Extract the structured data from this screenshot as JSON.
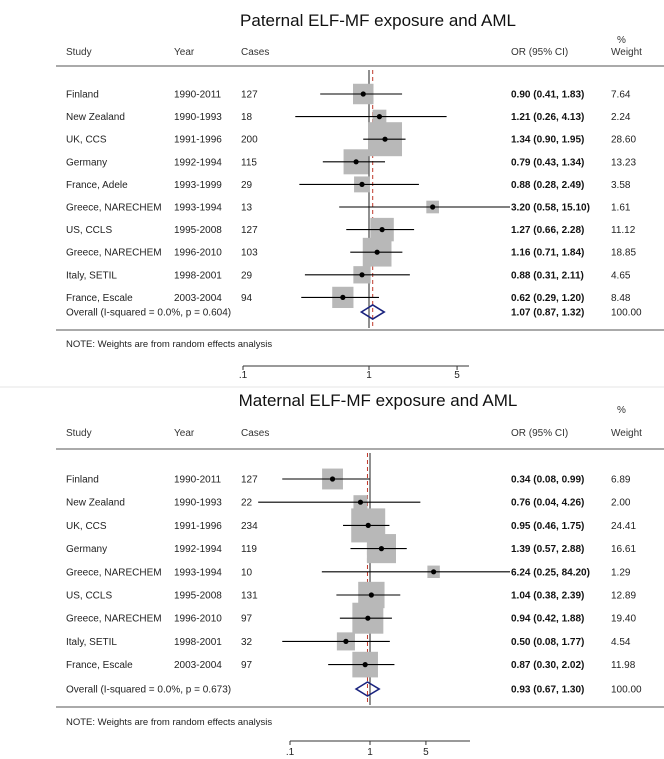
{
  "chart_data": [
    {
      "type": "forest",
      "title": "Paternal ELF-MF exposure and AML",
      "columns": {
        "study": "Study",
        "year": "Year",
        "cases": "Cases",
        "or": "OR (95% CI)",
        "weight_top": "%",
        "weight": "Weight"
      },
      "studies": [
        {
          "study": "Finland",
          "year": "1990-2011",
          "cases": "127",
          "or_text": "0.90 (0.41, 1.83)",
          "weight_text": "7.64",
          "or": 0.9,
          "lo": 0.41,
          "hi": 1.83,
          "weight": 7.64
        },
        {
          "study": "New Zealand",
          "year": "1990-1993",
          "cases": "18",
          "or_text": "1.21 (0.26, 4.13)",
          "weight_text": "2.24",
          "or": 1.21,
          "lo": 0.26,
          "hi": 4.13,
          "weight": 2.24
        },
        {
          "study": "UK, CCS",
          "year": "1991-1996",
          "cases": "200",
          "or_text": "1.34 (0.90, 1.95)",
          "weight_text": "28.60",
          "or": 1.34,
          "lo": 0.9,
          "hi": 1.95,
          "weight": 28.6
        },
        {
          "study": "Germany",
          "year": "1992-1994",
          "cases": "115",
          "or_text": "0.79 (0.43, 1.34)",
          "weight_text": "13.23",
          "or": 0.79,
          "lo": 0.43,
          "hi": 1.34,
          "weight": 13.23
        },
        {
          "study": "France, Adele",
          "year": "1993-1999",
          "cases": "29",
          "or_text": "0.88 (0.28, 2.49)",
          "weight_text": "3.58",
          "or": 0.88,
          "lo": 0.28,
          "hi": 2.49,
          "weight": 3.58
        },
        {
          "study": "Greece, NARECHEM",
          "year": "1993-1994",
          "cases": "13",
          "or_text": "3.20 (0.58, 15.10)",
          "weight_text": "1.61",
          "or": 3.2,
          "lo": 0.58,
          "hi": 15.1,
          "weight": 1.61
        },
        {
          "study": "US, CCLS",
          "year": "1995-2008",
          "cases": "127",
          "or_text": "1.27 (0.66, 2.28)",
          "weight_text": "11.12",
          "or": 1.27,
          "lo": 0.66,
          "hi": 2.28,
          "weight": 11.12
        },
        {
          "study": "Greece, NARECHEM",
          "year": "1996-2010",
          "cases": "103",
          "or_text": "1.16 (0.71, 1.84)",
          "weight_text": "18.85",
          "or": 1.16,
          "lo": 0.71,
          "hi": 1.84,
          "weight": 18.85
        },
        {
          "study": "Italy, SETIL",
          "year": "1998-2001",
          "cases": "29",
          "or_text": "0.88 (0.31, 2.11)",
          "weight_text": "4.65",
          "or": 0.88,
          "lo": 0.31,
          "hi": 2.11,
          "weight": 4.65
        },
        {
          "study": "France, Escale",
          "year": "2003-2004",
          "cases": "94",
          "or_text": "0.62 (0.29, 1.20)",
          "weight_text": "8.48",
          "or": 0.62,
          "lo": 0.29,
          "hi": 1.2,
          "weight": 8.48
        }
      ],
      "overall": {
        "label": "Overall  (I-squared = 0.0%, p = 0.604)",
        "or_text": "1.07 (0.87, 1.32)",
        "weight_text": "100.00",
        "or": 1.07,
        "lo": 0.87,
        "hi": 1.32
      },
      "note": "NOTE: Weights are from random effects analysis",
      "x_scale": "log",
      "x_range": [
        0.1,
        20
      ],
      "x_ticks": [
        {
          "value": 0.1,
          "label": ".1"
        },
        {
          "value": 1,
          "label": "1"
        },
        {
          "value": 5,
          "label": "5"
        }
      ],
      "colors": {
        "box": "#b8b8b8",
        "diamond": "#1a237e",
        "overall_line": "#c0392b"
      }
    },
    {
      "type": "forest",
      "title": "Maternal ELF-MF exposure and AML",
      "columns": {
        "study": "Study",
        "year": "Year",
        "cases": "Cases",
        "or": "OR (95% CI)",
        "weight_top": "%",
        "weight": "Weight"
      },
      "studies": [
        {
          "study": "Finland",
          "year": "1990-2011",
          "cases": "127",
          "or_text": "0.34 (0.08, 0.99)",
          "weight_text": "6.89",
          "or": 0.34,
          "lo": 0.08,
          "hi": 0.99,
          "weight": 6.89
        },
        {
          "study": "New Zealand",
          "year": "1990-1993",
          "cases": "22",
          "or_text": "0.76 (0.04, 4.26)",
          "weight_text": "2.00",
          "or": 0.76,
          "lo": 0.04,
          "hi": 4.26,
          "weight": 2.0
        },
        {
          "study": "UK, CCS",
          "year": "1991-1996",
          "cases": "234",
          "or_text": "0.95 (0.46, 1.75)",
          "weight_text": "24.41",
          "or": 0.95,
          "lo": 0.46,
          "hi": 1.75,
          "weight": 24.41
        },
        {
          "study": "Germany",
          "year": "1992-1994",
          "cases": "119",
          "or_text": "1.39 (0.57, 2.88)",
          "weight_text": "16.61",
          "or": 1.39,
          "lo": 0.57,
          "hi": 2.88,
          "weight": 16.61
        },
        {
          "study": "Greece, NARECHEM",
          "year": "1993-1994",
          "cases": "10",
          "or_text": "6.24 (0.25, 84.20)",
          "weight_text": "1.29",
          "or": 6.24,
          "lo": 0.25,
          "hi": 84.2,
          "weight": 1.29
        },
        {
          "study": "US, CCLS",
          "year": "1995-2008",
          "cases": "131",
          "or_text": "1.04 (0.38, 2.39)",
          "weight_text": "12.89",
          "or": 1.04,
          "lo": 0.38,
          "hi": 2.39,
          "weight": 12.89
        },
        {
          "study": "Greece, NARECHEM",
          "year": "1996-2010",
          "cases": "97",
          "or_text": "0.94 (0.42, 1.88)",
          "weight_text": "19.40",
          "or": 0.94,
          "lo": 0.42,
          "hi": 1.88,
          "weight": 19.4
        },
        {
          "study": "Italy, SETIL",
          "year": "1998-2001",
          "cases": "32",
          "or_text": "0.50 (0.08, 1.77)",
          "weight_text": "4.54",
          "or": 0.5,
          "lo": 0.08,
          "hi": 1.77,
          "weight": 4.54
        },
        {
          "study": "France, Escale",
          "year": "2003-2004",
          "cases": "97",
          "or_text": "0.87 (0.30, 2.02)",
          "weight_text": "11.98",
          "or": 0.87,
          "lo": 0.3,
          "hi": 2.02,
          "weight": 11.98
        }
      ],
      "overall": {
        "label": "Overall  (I-squared = 0.0%, p = 0.673)",
        "or_text": "0.93 (0.67, 1.30)",
        "weight_text": "100.00",
        "or": 0.93,
        "lo": 0.67,
        "hi": 1.3
      },
      "note": "NOTE: Weights are from random effects analysis",
      "x_scale": "log",
      "x_range": [
        0.04,
        20
      ],
      "x_ticks": [
        {
          "value": 0.1,
          "label": ".1"
        },
        {
          "value": 1,
          "label": "1"
        },
        {
          "value": 5,
          "label": "5"
        }
      ],
      "colors": {
        "box": "#b8b8b8",
        "diamond": "#1a237e",
        "overall_line": "#c0392b"
      }
    }
  ]
}
